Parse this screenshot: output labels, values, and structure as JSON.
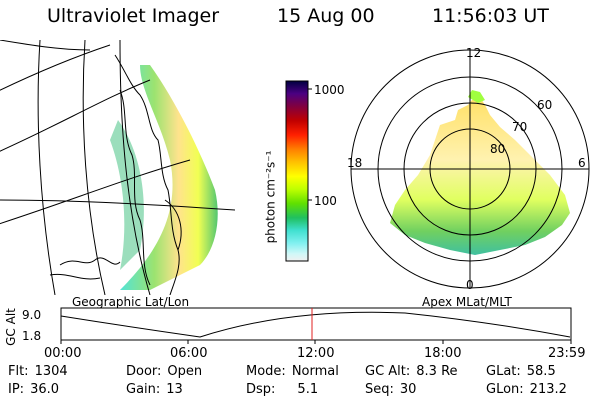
{
  "header": {
    "instrument": "Ultraviolet Imager",
    "date": "15 Aug 00",
    "time": "11:56:03 UT"
  },
  "colorbar": {
    "unit_label": "photon cm⁻²s⁻¹",
    "ticks": [
      "1000",
      "100"
    ],
    "colors": [
      "#000040",
      "#4b0082",
      "#800040",
      "#c00000",
      "#ff2000",
      "#ff8000",
      "#ffc000",
      "#ffff00",
      "#c0ff00",
      "#60e000",
      "#20c060",
      "#40e0d0",
      "#80f0f0",
      "#d0f8f8",
      "#f0f0f0"
    ]
  },
  "left_map": {
    "caption": "Geographic Lat/Lon"
  },
  "polar_plot": {
    "caption": "Apex MLat/MLT",
    "mlt_labels": {
      "top": "12",
      "left": "18",
      "right": "6",
      "bottom": "0"
    },
    "lat_labels": [
      "60",
      "70",
      "80"
    ]
  },
  "altitude_plot": {
    "ylabel": "GC Alt",
    "y_ticks": [
      "9.0",
      "1.8"
    ],
    "x_ticks": [
      "00:00",
      "06:00",
      "12:00",
      "18:00",
      "23:59"
    ]
  },
  "status": {
    "flt_label": "Flt:",
    "flt": "1304",
    "ip_label": "IP:",
    "ip": "36.0",
    "door_label": "Door:",
    "door": "Open",
    "gain_label": "Gain:",
    "gain": "13",
    "mode_label": "Mode:",
    "mode": "Normal",
    "dsp_label": "Dsp:",
    "dsp": "5.1",
    "gcalt_label": "GC Alt:",
    "gcalt": "8.3 Re",
    "seq_label": "Seq:",
    "seq": "30",
    "glat_label": "GLat:",
    "glat": "58.5",
    "glon_label": "GLon:",
    "glon": "213.2"
  }
}
